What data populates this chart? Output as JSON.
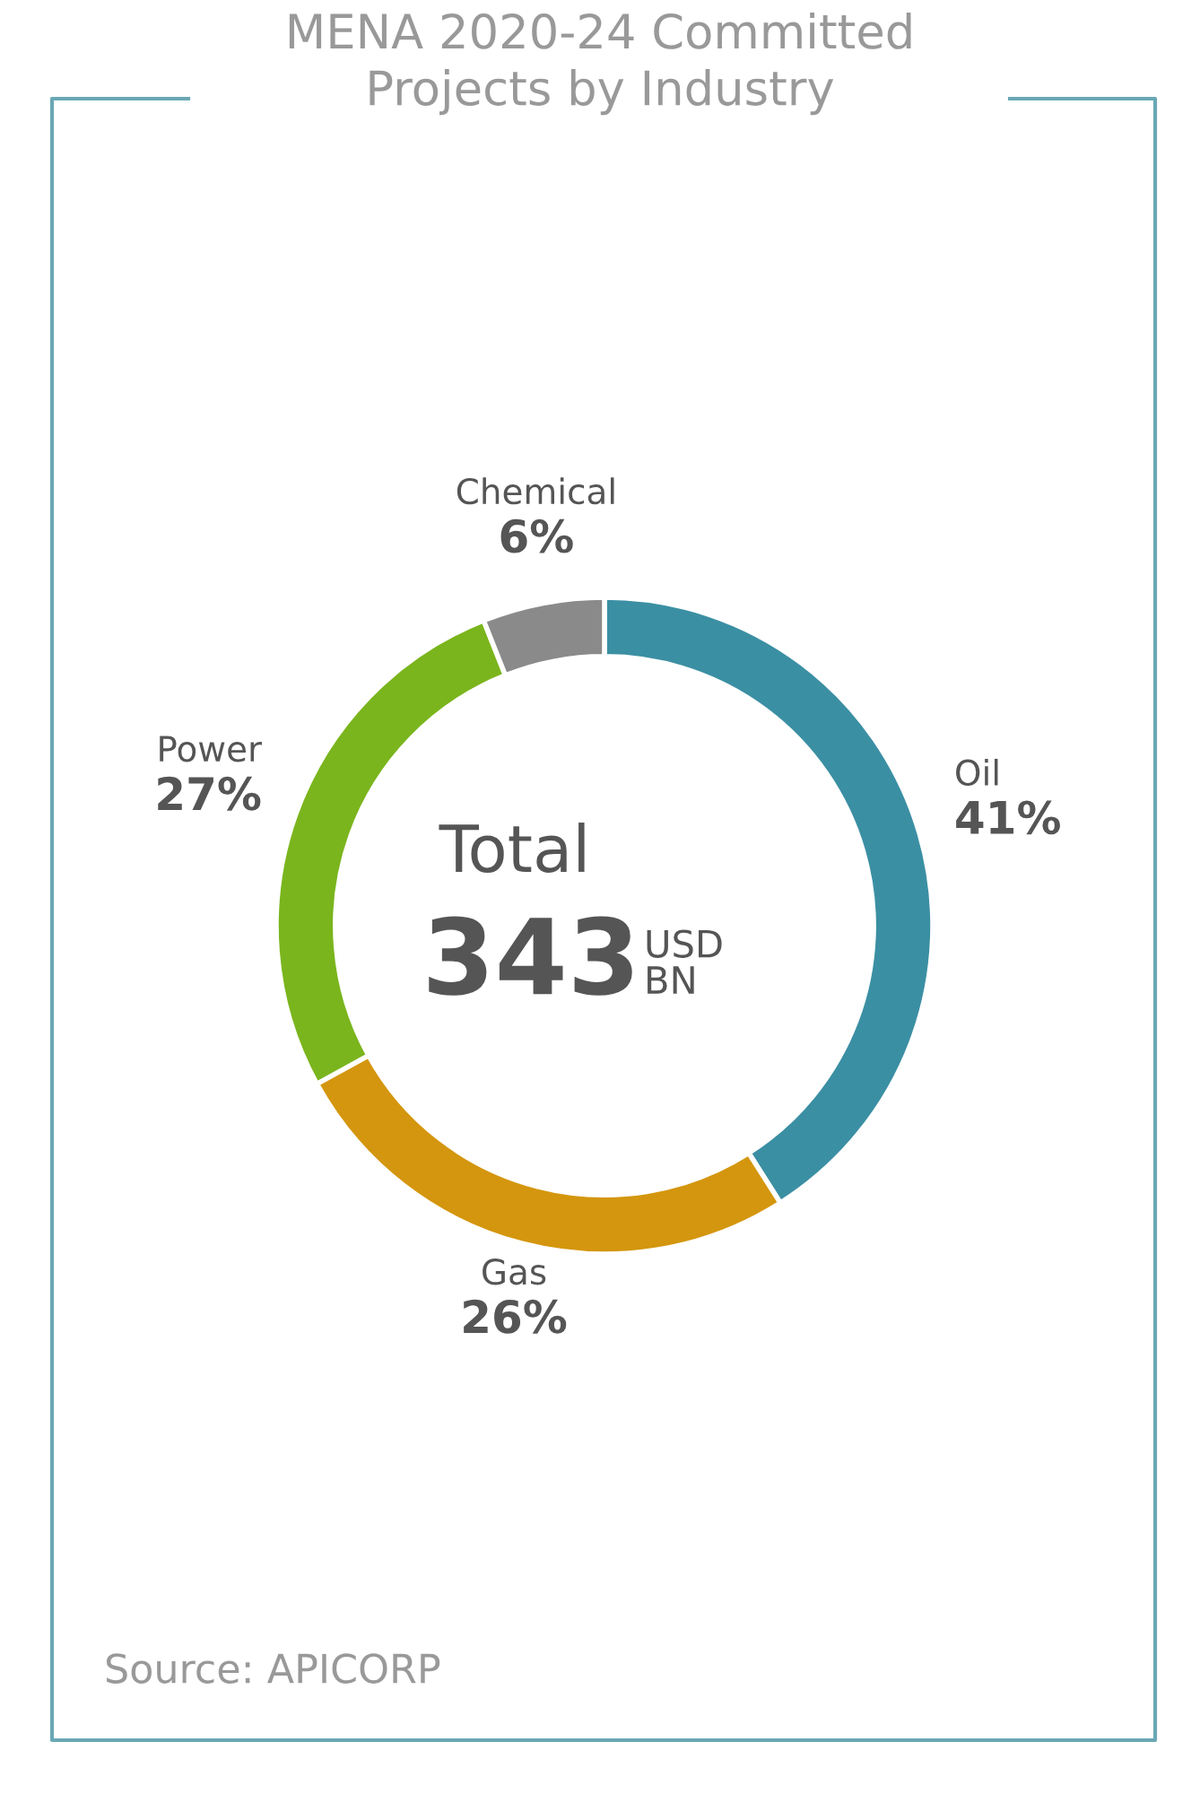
{
  "chart_data": {
    "type": "donut",
    "title": "MENA 2020-24 Committed\nProjects by Industry",
    "categories": [
      "Oil",
      "Gas",
      "Power",
      "Chemical"
    ],
    "values": [
      41,
      26,
      27,
      6
    ],
    "colors": [
      "#3b8fa3",
      "#d4960e",
      "#7ab51d",
      "#8a8a8a"
    ],
    "value_labels": [
      "41%",
      "26%",
      "27%",
      "6%"
    ],
    "annotations": [
      "Total",
      "343",
      "USD BN",
      "Source: APICORP"
    ]
  }
}
